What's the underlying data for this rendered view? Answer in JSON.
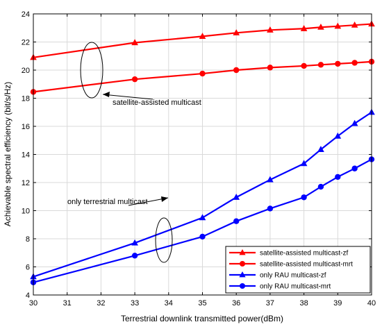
{
  "chart_data": {
    "type": "line",
    "title": "",
    "xlabel": "Terrestrial downlink transmitted power(dBm)",
    "ylabel": "Achievable spectral efficiency (bit/s/Hz)",
    "xlim": [
      30,
      40
    ],
    "ylim": [
      4,
      24
    ],
    "xticks": [
      30,
      31,
      32,
      33,
      34,
      35,
      36,
      37,
      38,
      39,
      40
    ],
    "yticks": [
      4,
      6,
      8,
      10,
      12,
      14,
      16,
      18,
      20,
      22,
      24
    ],
    "grid": true,
    "legend_position": "bottom-right",
    "x": [
      30,
      33,
      35,
      36,
      37,
      38,
      38.5,
      39,
      39.5,
      40
    ],
    "series": [
      {
        "name": "satellite-assisted multicast-zf",
        "color": "#ff0000",
        "marker": "triangle",
        "values": [
          20.9,
          21.95,
          22.4,
          22.65,
          22.85,
          22.95,
          23.05,
          23.12,
          23.2,
          23.28
        ]
      },
      {
        "name": "satellite-assisted multicast-mrt",
        "color": "#ff0000",
        "marker": "circle",
        "values": [
          18.45,
          19.35,
          19.75,
          20.0,
          20.18,
          20.3,
          20.38,
          20.45,
          20.52,
          20.6
        ]
      },
      {
        "name": "only RAU multicast-zf",
        "color": "#0000ff",
        "marker": "triangle",
        "values": [
          5.3,
          7.7,
          9.5,
          10.95,
          12.2,
          13.35,
          14.35,
          15.3,
          16.2,
          17.0
        ]
      },
      {
        "name": "only RAU multicast-mrt",
        "color": "#0000ff",
        "marker": "circle",
        "values": [
          4.9,
          6.8,
          8.15,
          9.25,
          10.15,
          10.95,
          11.7,
          12.4,
          13.0,
          13.65
        ]
      }
    ],
    "annotations": [
      {
        "text": "satellite-assisted multicast"
      },
      {
        "text": "only terrestrial multicast"
      }
    ]
  }
}
